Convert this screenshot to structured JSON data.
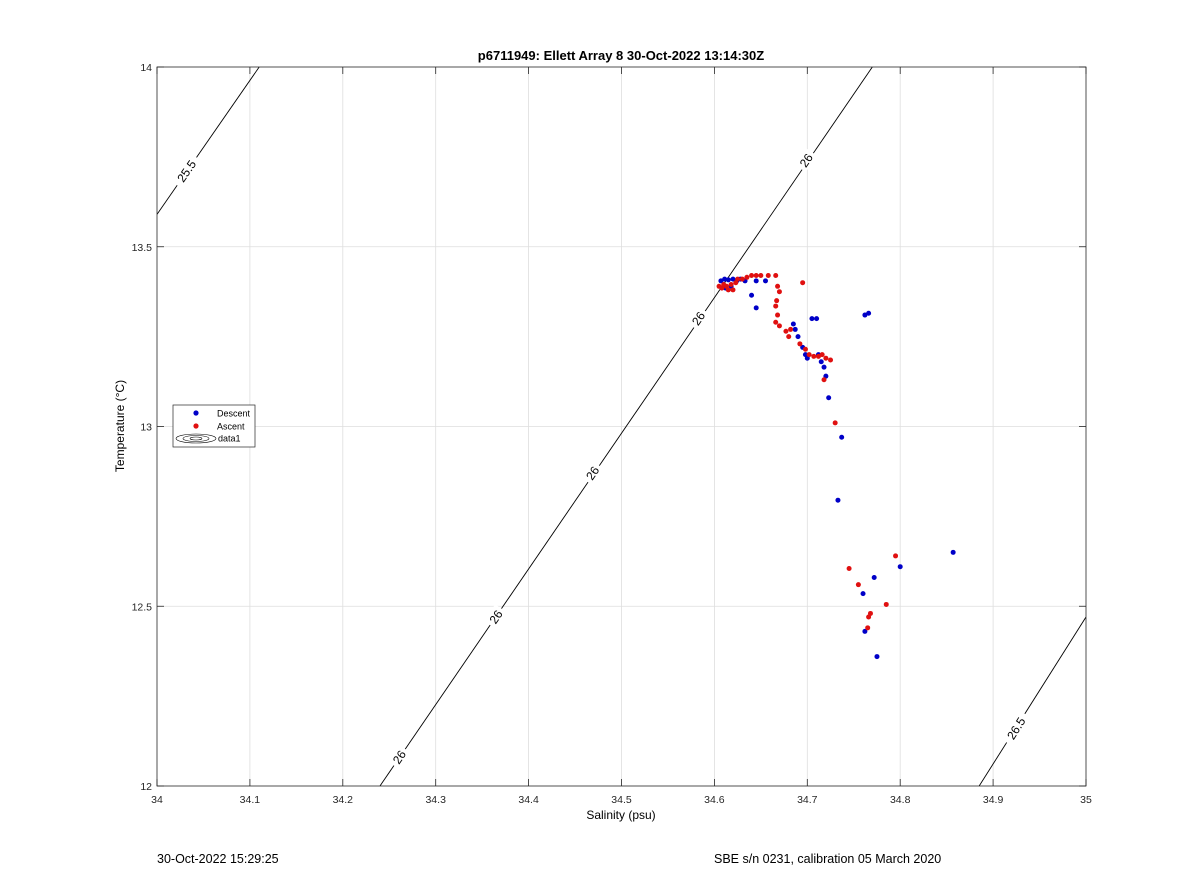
{
  "chart_data": {
    "type": "scatter",
    "title": "p6711949: Ellett Array 8 30-Oct-2022 13:14:30Z",
    "xlabel": "Salinity (psu)",
    "ylabel": "Temperature (°C)",
    "xlim": [
      34,
      35
    ],
    "ylim": [
      12,
      14
    ],
    "xticks": [
      "34",
      "34.1",
      "34.2",
      "34.3",
      "34.4",
      "34.5",
      "34.6",
      "34.7",
      "34.8",
      "34.9",
      "35"
    ],
    "yticks": [
      "12",
      "12.5",
      "13",
      "13.5",
      "14"
    ],
    "grid": true,
    "legend_placement": "left",
    "contours": [
      {
        "level": "25.5",
        "points": [
          [
            34.0,
            13.59
          ],
          [
            34.11,
            14.0
          ]
        ],
        "labels": [
          [
            34.032,
            13.71
          ]
        ]
      },
      {
        "level": "26",
        "points": [
          [
            34.24,
            12.0
          ],
          [
            34.77,
            14.0
          ]
        ],
        "labels": [
          [
            34.261,
            12.08
          ],
          [
            34.365,
            12.47
          ],
          [
            34.469,
            12.87
          ],
          [
            34.583,
            13.3
          ],
          [
            34.699,
            13.74
          ]
        ]
      },
      {
        "level": "26.5",
        "points": [
          [
            34.885,
            12.0
          ],
          [
            35.0,
            12.47
          ]
        ],
        "labels": [
          [
            34.925,
            12.16
          ]
        ]
      }
    ],
    "series": [
      {
        "name": "Descent",
        "color": "#0000c8",
        "points": [
          [
            34.607,
            13.405
          ],
          [
            34.611,
            13.41
          ],
          [
            34.615,
            13.408
          ],
          [
            34.62,
            13.41
          ],
          [
            34.624,
            13.405
          ],
          [
            34.628,
            13.41
          ],
          [
            34.633,
            13.405
          ],
          [
            34.645,
            13.405
          ],
          [
            34.655,
            13.405
          ],
          [
            34.64,
            13.365
          ],
          [
            34.645,
            13.33
          ],
          [
            34.612,
            13.385
          ],
          [
            34.618,
            13.39
          ],
          [
            34.685,
            13.285
          ],
          [
            34.687,
            13.27
          ],
          [
            34.69,
            13.25
          ],
          [
            34.695,
            13.22
          ],
          [
            34.698,
            13.2
          ],
          [
            34.7,
            13.19
          ],
          [
            34.705,
            13.3
          ],
          [
            34.71,
            13.3
          ],
          [
            34.712,
            13.2
          ],
          [
            34.715,
            13.18
          ],
          [
            34.718,
            13.165
          ],
          [
            34.72,
            13.14
          ],
          [
            34.723,
            13.08
          ],
          [
            34.737,
            12.97
          ],
          [
            34.733,
            12.795
          ],
          [
            34.762,
            13.31
          ],
          [
            34.766,
            13.315
          ],
          [
            34.857,
            12.65
          ],
          [
            34.8,
            12.61
          ],
          [
            34.772,
            12.58
          ],
          [
            34.76,
            12.535
          ],
          [
            34.762,
            12.43
          ],
          [
            34.775,
            12.36
          ]
        ]
      },
      {
        "name": "Ascent",
        "color": "#e01010",
        "points": [
          [
            34.605,
            13.39
          ],
          [
            34.608,
            13.385
          ],
          [
            34.61,
            13.395
          ],
          [
            34.613,
            13.39
          ],
          [
            34.615,
            13.38
          ],
          [
            34.618,
            13.395
          ],
          [
            34.62,
            13.38
          ],
          [
            34.623,
            13.4
          ],
          [
            34.625,
            13.41
          ],
          [
            34.63,
            13.41
          ],
          [
            34.635,
            13.415
          ],
          [
            34.64,
            13.42
          ],
          [
            34.645,
            13.42
          ],
          [
            34.65,
            13.42
          ],
          [
            34.658,
            13.42
          ],
          [
            34.666,
            13.42
          ],
          [
            34.668,
            13.39
          ],
          [
            34.67,
            13.375
          ],
          [
            34.667,
            13.35
          ],
          [
            34.666,
            13.335
          ],
          [
            34.668,
            13.31
          ],
          [
            34.666,
            13.29
          ],
          [
            34.67,
            13.28
          ],
          [
            34.677,
            13.265
          ],
          [
            34.682,
            13.27
          ],
          [
            34.68,
            13.25
          ],
          [
            34.695,
            13.4
          ],
          [
            34.692,
            13.23
          ],
          [
            34.698,
            13.215
          ],
          [
            34.702,
            13.2
          ],
          [
            34.707,
            13.195
          ],
          [
            34.712,
            13.195
          ],
          [
            34.716,
            13.2
          ],
          [
            34.72,
            13.19
          ],
          [
            34.725,
            13.185
          ],
          [
            34.718,
            13.13
          ],
          [
            34.73,
            13.01
          ],
          [
            34.745,
            12.605
          ],
          [
            34.755,
            12.56
          ],
          [
            34.795,
            12.64
          ],
          [
            34.785,
            12.505
          ],
          [
            34.768,
            12.48
          ],
          [
            34.766,
            12.47
          ],
          [
            34.765,
            12.44
          ]
        ]
      }
    ],
    "legend_contour_entry": "data1"
  },
  "footer": {
    "left": "30-Oct-2022 15:29:25",
    "right": "SBE s/n 0231, calibration 05 March 2020"
  }
}
